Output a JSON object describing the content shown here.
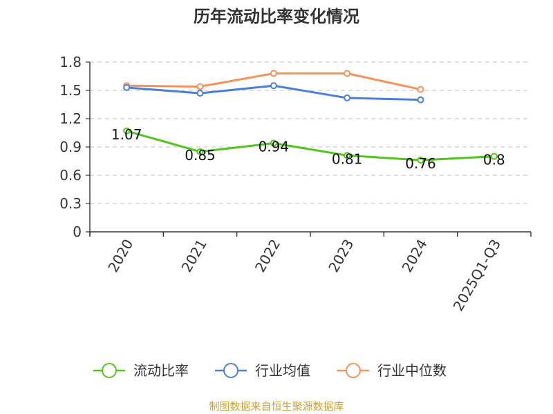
{
  "chart_data": {
    "type": "line",
    "title": "历年流动比率变化情况",
    "categories": [
      "2020",
      "2021",
      "2022",
      "2023",
      "2024",
      "2025Q1-Q3"
    ],
    "series": [
      {
        "name": "流动比率",
        "color": "#52c41a",
        "values": [
          1.07,
          0.85,
          0.94,
          0.81,
          0.76,
          0.8
        ],
        "labels": [
          "1.07",
          "0.85",
          "0.94",
          "0.81",
          "0.76",
          "0.8"
        ],
        "show_labels": true
      },
      {
        "name": "行业均值",
        "color": "#4a7fd8",
        "values": [
          1.53,
          1.47,
          1.55,
          1.42,
          1.4,
          null
        ],
        "show_labels": false
      },
      {
        "name": "行业中位数",
        "color": "#f5915a",
        "values": [
          1.55,
          1.54,
          1.68,
          1.68,
          1.51,
          null
        ],
        "show_labels": false
      }
    ],
    "y_ticks": [
      "0",
      "0.3",
      "0.6",
      "0.9",
      "1.2",
      "1.5",
      "1.8"
    ],
    "ylim": [
      0,
      1.8
    ],
    "grid": true,
    "legend_position": "bottom",
    "xlabel": "",
    "ylabel": ""
  },
  "source_note": "制图数据来自恒生聚源数据库"
}
